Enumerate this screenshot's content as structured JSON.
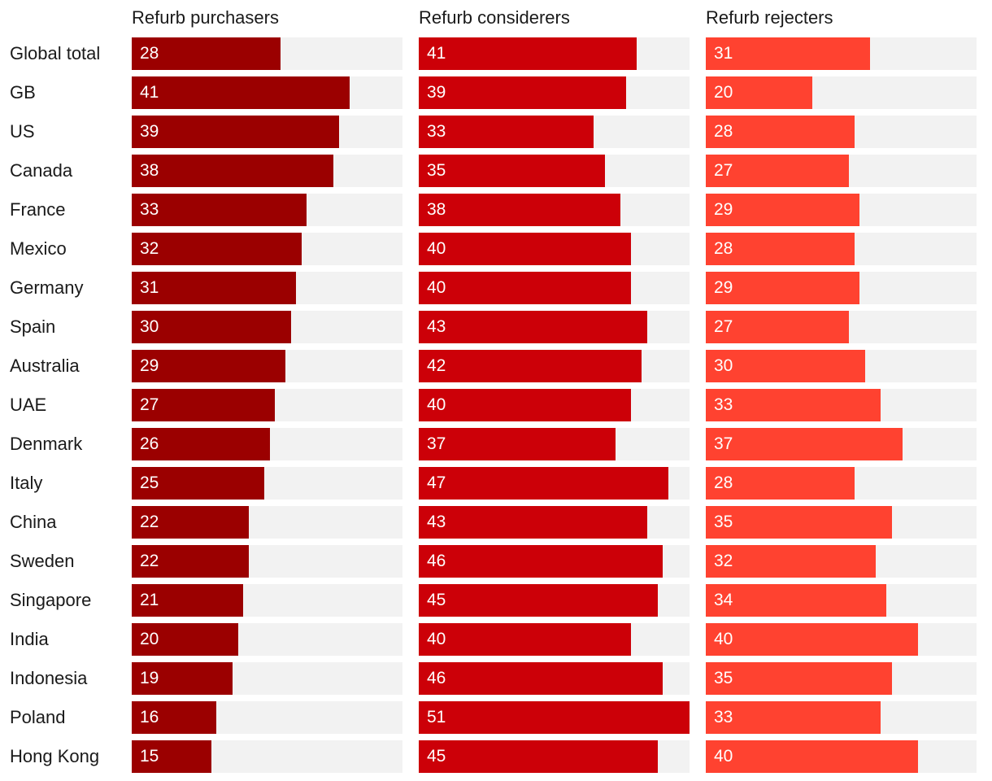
{
  "chart_data": {
    "type": "bar",
    "orientation": "horizontal",
    "layout": "small-multiples",
    "title": "",
    "categories": [
      "Global total",
      "GB",
      "US",
      "Canada",
      "France",
      "Mexico",
      "Germany",
      "Spain",
      "Australia",
      "UAE",
      "Denmark",
      "Italy",
      "China",
      "Sweden",
      "Singapore",
      "India",
      "Indonesia",
      "Poland",
      "Hong Kong"
    ],
    "series": [
      {
        "name": "Refurb purchasers",
        "color": "#9b0000",
        "values": [
          28,
          41,
          39,
          38,
          33,
          32,
          31,
          30,
          29,
          27,
          26,
          25,
          22,
          22,
          21,
          20,
          19,
          16,
          15
        ]
      },
      {
        "name": "Refurb considerers",
        "color": "#cc0008",
        "values": [
          41,
          39,
          33,
          35,
          38,
          40,
          40,
          43,
          42,
          40,
          37,
          47,
          43,
          46,
          45,
          40,
          46,
          51,
          45
        ]
      },
      {
        "name": "Refurb rejecters",
        "color": "#ff4230",
        "values": [
          31,
          20,
          28,
          27,
          29,
          28,
          29,
          27,
          30,
          33,
          37,
          28,
          35,
          32,
          34,
          40,
          35,
          33,
          40
        ]
      }
    ],
    "xlim": [
      0,
      51
    ],
    "track_color": "#f2f2f2",
    "grid": false,
    "legend": "none"
  }
}
